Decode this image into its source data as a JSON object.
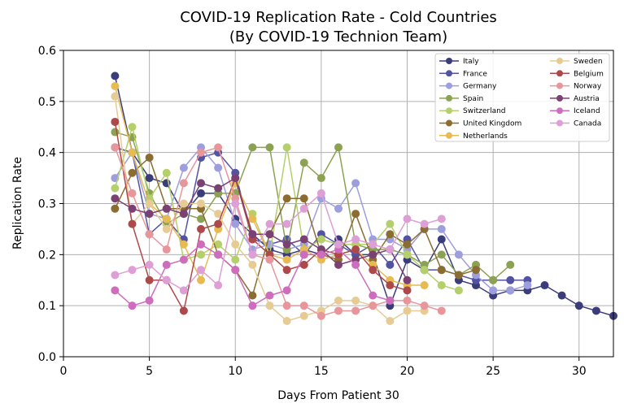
{
  "chart_data": {
    "type": "line",
    "title": [
      "COVID-19 Replication Rate - Cold Countries",
      "(By COVID-19 Technion Team)"
    ],
    "xlabel": "Days From Patient 30",
    "ylabel": "Replication Rate",
    "xlim": [
      0,
      32
    ],
    "ylim": [
      0,
      0.6
    ],
    "xticks": [
      0,
      5,
      10,
      15,
      20,
      25,
      30
    ],
    "yticks": [
      0.0,
      0.1,
      0.2,
      0.3,
      0.4,
      0.5,
      0.6
    ],
    "grid": true,
    "legend": {
      "placement": "top-right",
      "columns": 2
    },
    "series": [
      {
        "name": "Italy",
        "color": "#3b3d7a",
        "points": [
          [
            3,
            0.55
          ],
          [
            4,
            0.4
          ],
          [
            5,
            0.35
          ],
          [
            6,
            0.34
          ],
          [
            7,
            0.28
          ],
          [
            8,
            0.32
          ],
          [
            9,
            0.32
          ],
          [
            10,
            0.27
          ],
          [
            11,
            0.24
          ],
          [
            12,
            0.21
          ],
          [
            13,
            0.2
          ],
          [
            14,
            0.21
          ],
          [
            15,
            0.2
          ],
          [
            16,
            0.23
          ],
          [
            17,
            0.2
          ],
          [
            18,
            0.2
          ],
          [
            19,
            0.1
          ],
          [
            20,
            0.19
          ],
          [
            21,
            0.17
          ],
          [
            22,
            0.23
          ],
          [
            23,
            0.15
          ],
          [
            24,
            0.14
          ],
          [
            25,
            0.12
          ],
          [
            26,
            0.13
          ],
          [
            27,
            0.13
          ],
          [
            28,
            0.14
          ],
          [
            29,
            0.12
          ],
          [
            30,
            0.1
          ],
          [
            31,
            0.09
          ],
          [
            32,
            0.08
          ]
        ]
      },
      {
        "name": "France",
        "color": "#5254a3",
        "points": [
          [
            3,
            0.41
          ],
          [
            4,
            0.4
          ],
          [
            5,
            0.24
          ],
          [
            6,
            0.27
          ],
          [
            7,
            0.23
          ],
          [
            8,
            0.39
          ],
          [
            9,
            0.4
          ],
          [
            10,
            0.36
          ],
          [
            11,
            0.23
          ],
          [
            12,
            0.22
          ],
          [
            13,
            0.23
          ],
          [
            14,
            0.2
          ],
          [
            15,
            0.24
          ],
          [
            16,
            0.22
          ],
          [
            17,
            0.2
          ],
          [
            18,
            0.22
          ],
          [
            19,
            0.18
          ],
          [
            20,
            0.23
          ],
          [
            21,
            0.17
          ],
          [
            22,
            0.17
          ],
          [
            23,
            0.16
          ],
          [
            24,
            0.15
          ],
          [
            25,
            0.15
          ],
          [
            26,
            0.15
          ],
          [
            27,
            0.15
          ]
        ]
      },
      {
        "name": "Germany",
        "color": "#9c9ede",
        "points": [
          [
            3,
            0.35
          ],
          [
            4,
            0.4
          ],
          [
            5,
            0.28
          ],
          [
            6,
            0.27
          ],
          [
            7,
            0.37
          ],
          [
            8,
            0.41
          ],
          [
            9,
            0.37
          ],
          [
            10,
            0.26
          ],
          [
            11,
            0.21
          ],
          [
            12,
            0.22
          ],
          [
            13,
            0.21
          ],
          [
            14,
            0.22
          ],
          [
            15,
            0.31
          ],
          [
            16,
            0.29
          ],
          [
            17,
            0.34
          ],
          [
            18,
            0.23
          ],
          [
            19,
            0.23
          ],
          [
            20,
            0.21
          ],
          [
            21,
            0.25
          ],
          [
            22,
            0.25
          ],
          [
            23,
            0.2
          ],
          [
            24,
            0.16
          ],
          [
            25,
            0.13
          ],
          [
            26,
            0.13
          ],
          [
            27,
            0.14
          ]
        ]
      },
      {
        "name": "Spain",
        "color": "#8ca252",
        "points": [
          [
            3,
            0.44
          ],
          [
            4,
            0.43
          ],
          [
            5,
            0.32
          ],
          [
            6,
            0.26
          ],
          [
            7,
            0.28
          ],
          [
            8,
            0.27
          ],
          [
            9,
            0.32
          ],
          [
            10,
            0.32
          ],
          [
            11,
            0.41
          ],
          [
            12,
            0.41
          ],
          [
            13,
            0.21
          ],
          [
            14,
            0.38
          ],
          [
            15,
            0.35
          ],
          [
            16,
            0.41
          ],
          [
            17,
            0.22
          ],
          [
            18,
            0.21
          ],
          [
            19,
            0.21
          ],
          [
            20,
            0.2
          ],
          [
            21,
            0.18
          ],
          [
            22,
            0.2
          ],
          [
            23,
            0.16
          ],
          [
            24,
            0.18
          ],
          [
            25,
            0.15
          ],
          [
            26,
            0.18
          ]
        ]
      },
      {
        "name": "Switzerland",
        "color": "#b5cf6b",
        "points": [
          [
            3,
            0.33
          ],
          [
            4,
            0.45
          ],
          [
            5,
            0.31
          ],
          [
            6,
            0.36
          ],
          [
            7,
            0.19
          ],
          [
            8,
            0.2
          ],
          [
            9,
            0.22
          ],
          [
            10,
            0.19
          ],
          [
            11,
            0.28
          ],
          [
            12,
            0.2
          ],
          [
            13,
            0.41
          ],
          [
            14,
            0.21
          ],
          [
            15,
            0.23
          ],
          [
            16,
            0.22
          ],
          [
            17,
            0.22
          ],
          [
            18,
            0.22
          ],
          [
            19,
            0.26
          ],
          [
            20,
            0.2
          ],
          [
            21,
            0.17
          ],
          [
            22,
            0.14
          ],
          [
            23,
            0.13
          ]
        ]
      },
      {
        "name": "United Kingdom",
        "color": "#8c6d31",
        "points": [
          [
            3,
            0.29
          ],
          [
            4,
            0.36
          ],
          [
            5,
            0.39
          ],
          [
            6,
            0.29
          ],
          [
            7,
            0.29
          ],
          [
            8,
            0.29
          ],
          [
            9,
            0.2
          ],
          [
            10,
            0.17
          ],
          [
            11,
            0.12
          ],
          [
            12,
            0.24
          ],
          [
            13,
            0.31
          ],
          [
            14,
            0.31
          ],
          [
            15,
            0.2
          ],
          [
            16,
            0.19
          ],
          [
            17,
            0.28
          ],
          [
            18,
            0.19
          ],
          [
            19,
            0.24
          ],
          [
            20,
            0.22
          ],
          [
            21,
            0.25
          ],
          [
            22,
            0.17
          ],
          [
            23,
            0.16
          ],
          [
            24,
            0.17
          ]
        ]
      },
      {
        "name": "Netherlands",
        "color": "#e7ba52",
        "points": [
          [
            3,
            0.53
          ],
          [
            4,
            0.4
          ],
          [
            5,
            0.3
          ],
          [
            6,
            0.27
          ],
          [
            7,
            0.22
          ],
          [
            8,
            0.15
          ],
          [
            9,
            0.25
          ],
          [
            10,
            0.34
          ],
          [
            11,
            0.27
          ],
          [
            12,
            0.2
          ],
          [
            13,
            0.19
          ],
          [
            14,
            0.21
          ],
          [
            15,
            0.19
          ],
          [
            16,
            0.2
          ],
          [
            17,
            0.21
          ],
          [
            18,
            0.18
          ],
          [
            19,
            0.15
          ],
          [
            20,
            0.14
          ],
          [
            21,
            0.14
          ]
        ]
      },
      {
        "name": "Sweden",
        "color": "#e7cb94",
        "points": [
          [
            3,
            0.51
          ],
          [
            4,
            0.26
          ],
          [
            5,
            0.3
          ],
          [
            6,
            0.25
          ],
          [
            7,
            0.3
          ],
          [
            8,
            0.3
          ],
          [
            9,
            0.28
          ],
          [
            10,
            0.22
          ],
          [
            11,
            0.18
          ],
          [
            12,
            0.1
          ],
          [
            13,
            0.07
          ],
          [
            14,
            0.08
          ],
          [
            15,
            0.09
          ],
          [
            16,
            0.11
          ],
          [
            17,
            0.11
          ],
          [
            18,
            0.1
          ],
          [
            19,
            0.07
          ],
          [
            20,
            0.09
          ],
          [
            21,
            0.09
          ]
        ]
      },
      {
        "name": "Belgium",
        "color": "#ad494a",
        "points": [
          [
            3,
            0.46
          ],
          [
            4,
            0.26
          ],
          [
            5,
            0.15
          ],
          [
            6,
            0.15
          ],
          [
            7,
            0.09
          ],
          [
            8,
            0.25
          ],
          [
            9,
            0.26
          ],
          [
            10,
            0.35
          ],
          [
            11,
            0.23
          ],
          [
            12,
            0.2
          ],
          [
            13,
            0.17
          ],
          [
            14,
            0.18
          ],
          [
            15,
            0.21
          ],
          [
            16,
            0.2
          ],
          [
            17,
            0.21
          ],
          [
            18,
            0.17
          ],
          [
            19,
            0.14
          ],
          [
            20,
            0.13
          ]
        ]
      },
      {
        "name": "Norway",
        "color": "#e7969c",
        "points": [
          [
            3,
            0.41
          ],
          [
            4,
            0.32
          ],
          [
            5,
            0.24
          ],
          [
            6,
            0.21
          ],
          [
            7,
            0.34
          ],
          [
            8,
            0.4
          ],
          [
            9,
            0.41
          ],
          [
            10,
            0.31
          ],
          [
            11,
            0.2
          ],
          [
            12,
            0.19
          ],
          [
            13,
            0.1
          ],
          [
            14,
            0.1
          ],
          [
            15,
            0.08
          ],
          [
            16,
            0.09
          ],
          [
            17,
            0.09
          ],
          [
            18,
            0.1
          ],
          [
            19,
            0.11
          ],
          [
            20,
            0.11
          ],
          [
            21,
            0.1
          ],
          [
            22,
            0.09
          ]
        ]
      },
      {
        "name": "Austria",
        "color": "#7b4173",
        "points": [
          [
            3,
            0.31
          ],
          [
            4,
            0.29
          ],
          [
            5,
            0.28
          ],
          [
            6,
            0.29
          ],
          [
            7,
            0.28
          ],
          [
            8,
            0.34
          ],
          [
            9,
            0.33
          ],
          [
            10,
            0.35
          ],
          [
            11,
            0.24
          ],
          [
            12,
            0.24
          ],
          [
            13,
            0.22
          ],
          [
            14,
            0.23
          ],
          [
            15,
            0.21
          ],
          [
            16,
            0.18
          ],
          [
            17,
            0.19
          ],
          [
            18,
            0.2
          ],
          [
            19,
            0.21
          ],
          [
            20,
            0.15
          ]
        ]
      },
      {
        "name": "Iceland",
        "color": "#ce6dbd",
        "points": [
          [
            3,
            0.13
          ],
          [
            4,
            0.1
          ],
          [
            5,
            0.11
          ],
          [
            6,
            0.18
          ],
          [
            7,
            0.19
          ],
          [
            8,
            0.22
          ],
          [
            9,
            0.2
          ],
          [
            10,
            0.17
          ],
          [
            11,
            0.1
          ],
          [
            12,
            0.12
          ],
          [
            13,
            0.13
          ],
          [
            14,
            0.2
          ],
          [
            15,
            0.2
          ],
          [
            16,
            0.21
          ],
          [
            17,
            0.18
          ],
          [
            18,
            0.12
          ],
          [
            19,
            0.11
          ]
        ]
      },
      {
        "name": "Canada",
        "color": "#de9ed6",
        "points": [
          [
            3,
            0.16
          ],
          [
            4,
            0.17
          ],
          [
            5,
            0.18
          ],
          [
            6,
            0.15
          ],
          [
            7,
            0.13
          ],
          [
            8,
            0.17
          ],
          [
            9,
            0.14
          ],
          [
            10,
            0.3
          ],
          [
            11,
            0.2
          ],
          [
            12,
            0.26
          ],
          [
            13,
            0.26
          ],
          [
            14,
            0.29
          ],
          [
            15,
            0.32
          ],
          [
            16,
            0.22
          ],
          [
            17,
            0.23
          ],
          [
            18,
            0.22
          ],
          [
            19,
            0.21
          ],
          [
            20,
            0.27
          ],
          [
            21,
            0.26
          ],
          [
            22,
            0.27
          ]
        ]
      }
    ]
  }
}
